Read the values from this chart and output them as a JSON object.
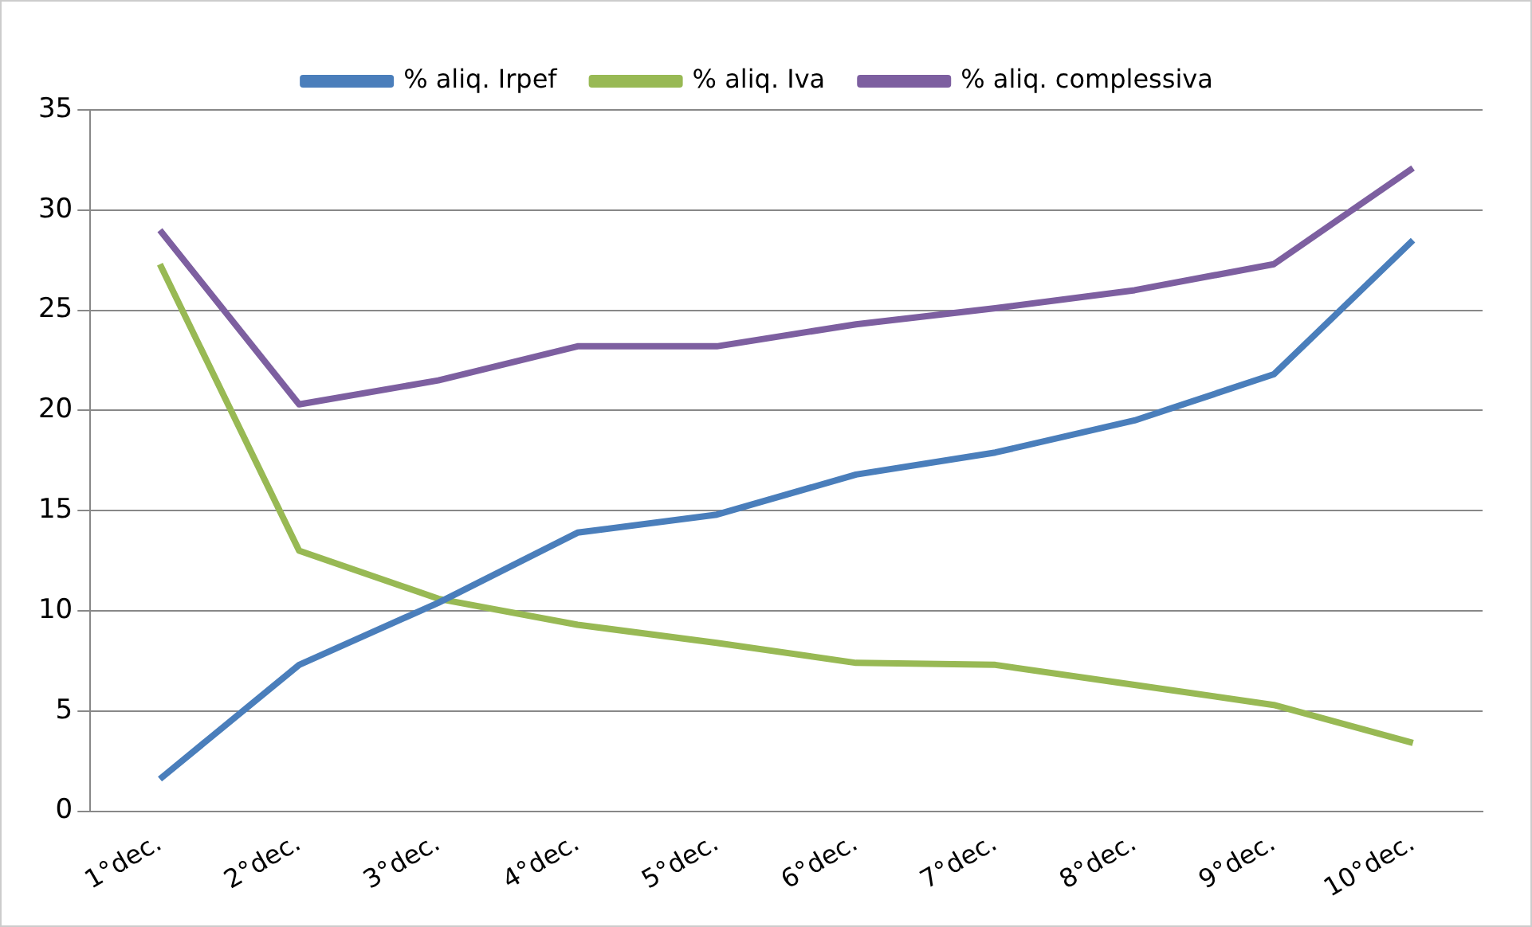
{
  "chart_data": {
    "type": "line",
    "categories": [
      "1°dec.",
      "2°dec.",
      "3°dec.",
      "4°dec.",
      "5°dec.",
      "6°dec.",
      "7°dec.",
      "8°dec.",
      "9°dec.",
      "10°dec."
    ],
    "series": [
      {
        "name": "% aliq. Irpef",
        "color": "#4a7ebb",
        "values": [
          1.6,
          7.3,
          10.4,
          13.9,
          14.8,
          16.8,
          17.9,
          19.5,
          21.8,
          28.5
        ]
      },
      {
        "name": "% aliq. Iva",
        "color": "#98b954",
        "values": [
          27.3,
          13.0,
          10.6,
          9.3,
          8.4,
          7.4,
          7.3,
          6.3,
          5.3,
          3.4
        ]
      },
      {
        "name": "% aliq. complessiva",
        "color": "#7d5fa0",
        "values": [
          29.0,
          20.3,
          21.5,
          23.2,
          23.2,
          24.3,
          25.1,
          26.0,
          27.3,
          32.1
        ]
      }
    ],
    "ylim": [
      0,
      35
    ],
    "yticks": [
      0,
      5,
      10,
      15,
      20,
      25,
      30,
      35
    ],
    "grid": "y",
    "legend": "top",
    "marker": "none",
    "line_style": "solid"
  }
}
